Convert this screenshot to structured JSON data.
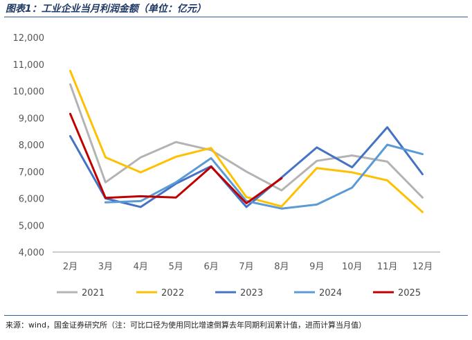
{
  "header": {
    "title": "图表1：工业企业当月利润金额（单位：亿元）"
  },
  "footer": {
    "source": "来源：wind，国金证券研究所（注：可比口径为使用同比增速倒算去年同期利润累计值，进而计算当月值）"
  },
  "chart_data": {
    "type": "line",
    "title": "",
    "xlabel": "",
    "ylabel": "",
    "categories": [
      "2月",
      "3月",
      "4月",
      "5月",
      "6月",
      "7月",
      "8月",
      "9月",
      "10月",
      "11月",
      "12月"
    ],
    "ylim": [
      4000,
      12000
    ],
    "yticks": [
      4000,
      5000,
      6000,
      7000,
      8000,
      9000,
      10000,
      11000,
      12000
    ],
    "ytick_labels": [
      "4,000",
      "5,000",
      "6,000",
      "7,000",
      "8,000",
      "9,000",
      "10,000",
      "11,000",
      "12,000"
    ],
    "grid": false,
    "legend": "bottom",
    "series": [
      {
        "name": "2021",
        "color": "#b3b3b3",
        "values": [
          10250,
          6600,
          7530,
          8100,
          7800,
          7000,
          6300,
          7400,
          7600,
          7370,
          6030
        ]
      },
      {
        "name": "2022",
        "color": "#ffc000",
        "values": [
          10750,
          7530,
          6970,
          7550,
          7880,
          6050,
          5700,
          7130,
          6970,
          6670,
          5490
        ]
      },
      {
        "name": "2023",
        "color": "#4472c4",
        "values": [
          8320,
          6000,
          5680,
          6550,
          7200,
          5680,
          6780,
          7900,
          7160,
          8650,
          6900
        ]
      },
      {
        "name": "2024",
        "color": "#5b9bd5",
        "values": [
          null,
          5850,
          5900,
          6600,
          7500,
          5900,
          5620,
          5770,
          6400,
          8000,
          7650
        ]
      },
      {
        "name": "2025",
        "color": "#c00000",
        "values": [
          9150,
          6020,
          6080,
          6030,
          7180,
          5820,
          6750,
          null,
          null,
          null,
          null
        ]
      }
    ]
  }
}
